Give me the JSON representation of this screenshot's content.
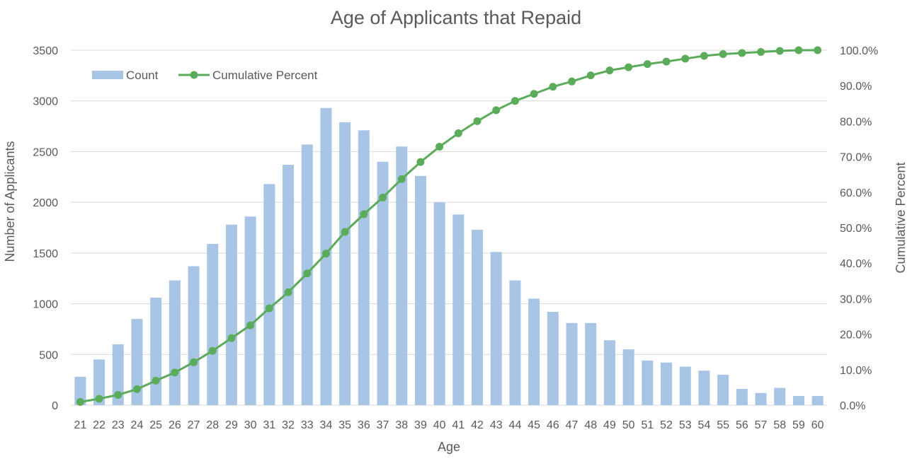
{
  "chart_data": {
    "type": "bar",
    "title": "Age of Applicants that Repaid",
    "xlabel": "Age",
    "ylabel": "Number of Applicants",
    "y2label": "Cumulative Percent",
    "categories": [
      "21",
      "22",
      "23",
      "24",
      "25",
      "26",
      "27",
      "28",
      "29",
      "30",
      "31",
      "32",
      "33",
      "34",
      "35",
      "36",
      "37",
      "38",
      "39",
      "40",
      "41",
      "42",
      "43",
      "44",
      "45",
      "46",
      "47",
      "48",
      "49",
      "50",
      "51",
      "52",
      "53",
      "54",
      "55",
      "56",
      "57",
      "58",
      "59",
      "60"
    ],
    "ylim": [
      0,
      3500
    ],
    "yticks": [
      "0",
      "500",
      "1000",
      "1500",
      "2000",
      "2500",
      "3000",
      "3500"
    ],
    "y2lim": [
      0,
      100
    ],
    "y2ticks": [
      "0.0%",
      "10.0%",
      "20.0%",
      "30.0%",
      "40.0%",
      "50.0%",
      "60.0%",
      "70.0%",
      "80.0%",
      "90.0%",
      "100.0%"
    ],
    "grid": true,
    "legend_position": "top-left",
    "series": [
      {
        "name": "Count",
        "type": "bar",
        "axis": "left",
        "color": "#a9c5e6",
        "values": [
          280,
          450,
          600,
          850,
          1060,
          1230,
          1370,
          1590,
          1780,
          1860,
          2180,
          2370,
          2570,
          2930,
          2790,
          2710,
          2400,
          2550,
          2260,
          2000,
          1880,
          1730,
          1510,
          1230,
          1050,
          920,
          810,
          810,
          640,
          550,
          440,
          420,
          380,
          340,
          300,
          160,
          120,
          170,
          90,
          90
        ]
      },
      {
        "name": "Cumulative Percent",
        "type": "line",
        "axis": "right",
        "color": "#5aab5a",
        "values": [
          0.9,
          1.8,
          2.9,
          4.5,
          6.9,
          9.2,
          12.1,
          15.3,
          18.9,
          22.5,
          27.3,
          31.8,
          37.1,
          42.7,
          48.8,
          53.8,
          58.5,
          63.7,
          68.5,
          72.8,
          76.6,
          80.0,
          83.1,
          85.7,
          87.7,
          89.7,
          91.2,
          92.9,
          94.3,
          95.2,
          96.1,
          96.8,
          97.6,
          98.4,
          98.9,
          99.2,
          99.5,
          99.8,
          100.0,
          100.0
        ]
      }
    ]
  }
}
